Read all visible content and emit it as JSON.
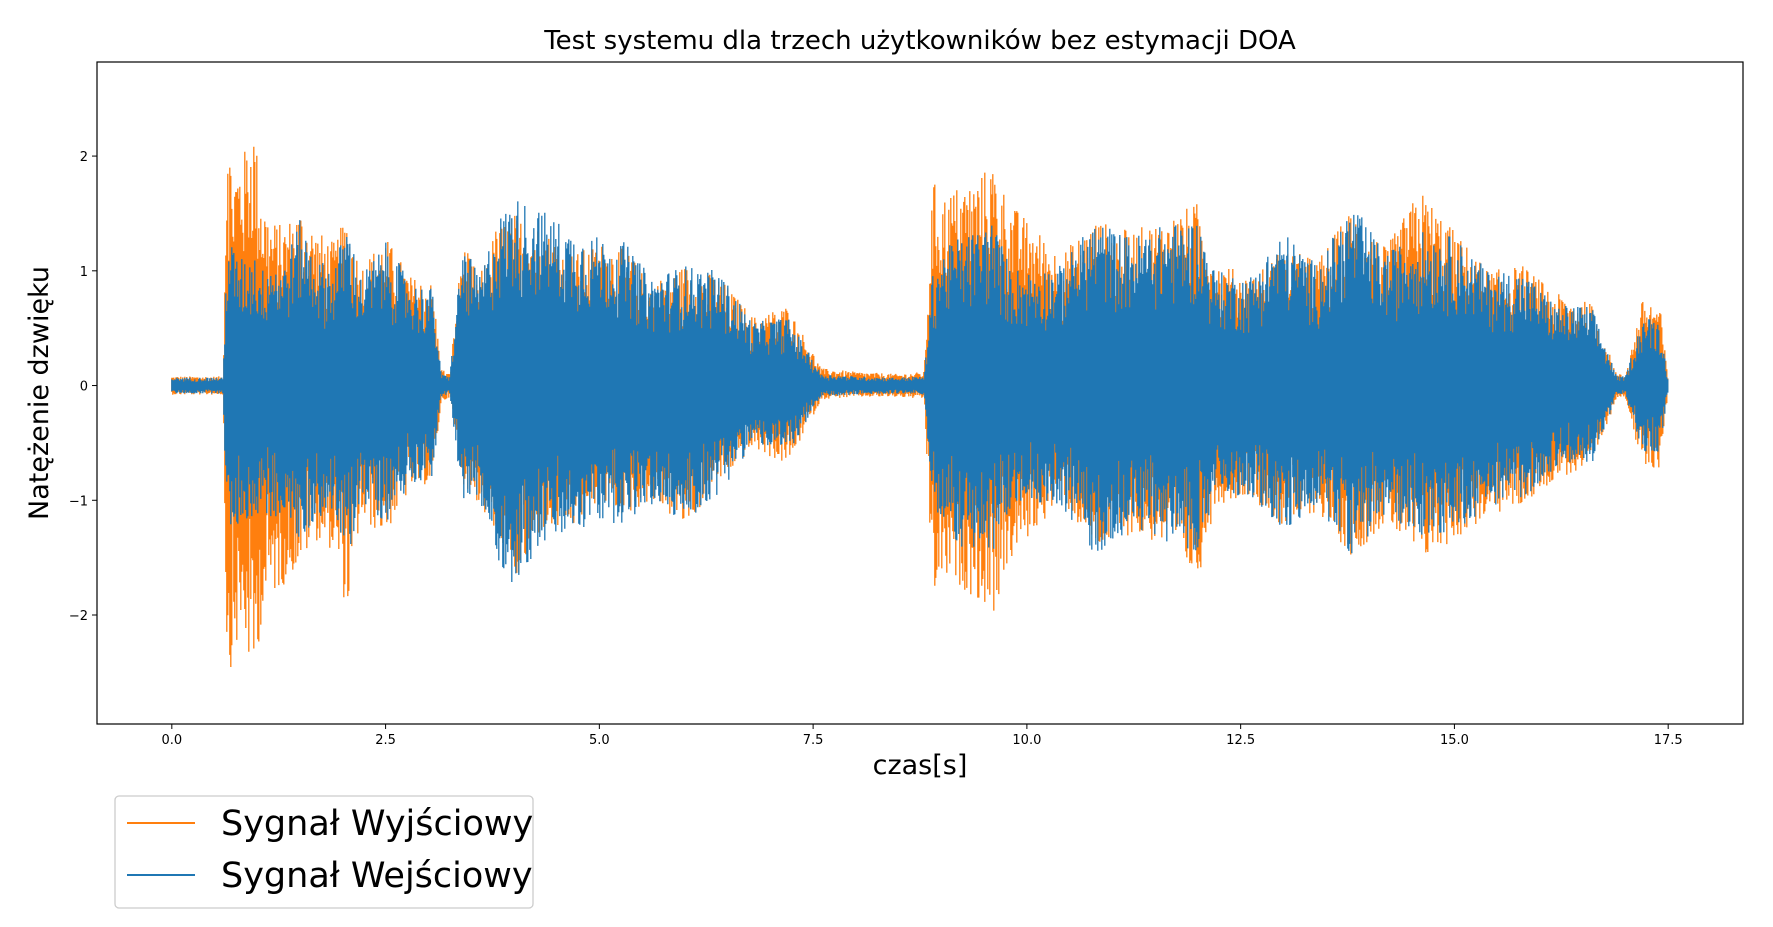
{
  "chart_data": {
    "type": "line",
    "title": "Test systemu dla trzech użytkowników bez estymacji DOA",
    "xlabel": "czas[s]",
    "ylabel": "Natężenie dzwięku",
    "xlim": [
      -0.875,
      18.375
    ],
    "ylim": [
      -2.95,
      2.82
    ],
    "x_ticks": [
      0.0,
      2.5,
      5.0,
      7.5,
      10.0,
      12.5,
      15.0,
      17.5
    ],
    "x_tick_labels": [
      "0.0",
      "2.5",
      "5.0",
      "7.5",
      "10.0",
      "12.5",
      "15.0",
      "17.5"
    ],
    "y_ticks": [
      -2,
      -1,
      0,
      1,
      2
    ],
    "y_tick_labels": [
      "−2",
      "−1",
      "0",
      "1",
      "2"
    ],
    "grid": false,
    "legend_position": "below-left",
    "series": [
      {
        "name": "Sygnał Wyjściowy",
        "color": "#ff7f0e",
        "envelope": {
          "x": [
            0.0,
            0.6,
            0.65,
            0.7,
            0.75,
            0.85,
            0.95,
            1.05,
            1.15,
            1.3,
            1.5,
            1.7,
            1.9,
            2.05,
            2.2,
            2.5,
            2.8,
            3.05,
            3.15,
            3.25,
            3.4,
            3.6,
            3.8,
            4.0,
            4.3,
            4.7,
            5.0,
            5.3,
            5.6,
            6.0,
            6.4,
            6.8,
            7.2,
            7.6,
            8.0,
            8.5,
            8.8,
            8.9,
            9.0,
            9.2,
            9.4,
            9.6,
            9.8,
            10.0,
            10.4,
            10.8,
            11.2,
            11.6,
            12.0,
            12.2,
            12.6,
            13.0,
            13.4,
            13.8,
            14.2,
            14.6,
            15.0,
            15.4,
            15.8,
            16.2,
            16.6,
            16.9,
            17.0,
            17.2,
            17.4,
            17.5
          ],
          "upper": [
            0.08,
            0.08,
            2.55,
            1.85,
            1.95,
            2.05,
            2.35,
            1.7,
            1.45,
            1.4,
            1.55,
            1.35,
            1.25,
            1.5,
            1.05,
            1.3,
            0.95,
            0.9,
            0.15,
            0.1,
            1.25,
            0.95,
            1.4,
            1.5,
            1.4,
            1.15,
            1.25,
            1.2,
            0.9,
            1.05,
            0.95,
            0.6,
            0.7,
            0.15,
            0.12,
            0.1,
            0.12,
            1.8,
            1.65,
            1.75,
            1.8,
            1.95,
            1.6,
            1.45,
            1.15,
            1.45,
            1.35,
            1.45,
            1.6,
            1.1,
            0.95,
            1.2,
            1.1,
            1.55,
            1.2,
            1.72,
            1.35,
            1.0,
            1.05,
            0.8,
            0.72,
            0.1,
            0.1,
            0.75,
            0.72,
            0.05
          ],
          "lower": [
            -0.08,
            -0.08,
            -2.68,
            -2.4,
            -2.3,
            -2.2,
            -2.65,
            -2.05,
            -1.85,
            -1.75,
            -1.55,
            -1.35,
            -1.45,
            -2.0,
            -1.2,
            -1.3,
            -0.9,
            -0.85,
            -0.15,
            -0.1,
            -0.85,
            -1.05,
            -1.35,
            -1.8,
            -1.3,
            -1.25,
            -1.0,
            -1.15,
            -1.0,
            -1.25,
            -0.85,
            -0.55,
            -0.7,
            -0.12,
            -0.1,
            -0.1,
            -0.12,
            -1.88,
            -1.7,
            -1.75,
            -1.85,
            -2.02,
            -1.55,
            -1.35,
            -1.0,
            -1.45,
            -1.3,
            -1.4,
            -1.7,
            -1.05,
            -0.95,
            -1.25,
            -1.1,
            -1.5,
            -1.2,
            -1.55,
            -1.35,
            -1.15,
            -1.05,
            -0.8,
            -0.75,
            -0.1,
            -0.1,
            -0.75,
            -0.72,
            -0.05
          ]
        }
      },
      {
        "name": "Sygnał Wejściowy",
        "color": "#1f77b4",
        "envelope": {
          "x": [
            0.0,
            0.6,
            0.65,
            0.7,
            0.75,
            0.85,
            0.95,
            1.05,
            1.15,
            1.3,
            1.5,
            1.7,
            1.9,
            2.05,
            2.2,
            2.5,
            2.8,
            3.05,
            3.15,
            3.25,
            3.4,
            3.6,
            3.8,
            4.0,
            4.3,
            4.7,
            5.0,
            5.3,
            5.6,
            6.0,
            6.4,
            6.8,
            7.2,
            7.6,
            8.0,
            8.5,
            8.8,
            8.9,
            9.0,
            9.2,
            9.4,
            9.6,
            9.8,
            10.0,
            10.4,
            10.8,
            11.2,
            11.6,
            12.0,
            12.2,
            12.6,
            13.0,
            13.4,
            13.8,
            14.2,
            14.6,
            15.0,
            15.4,
            15.8,
            16.2,
            16.6,
            16.9,
            17.0,
            17.2,
            17.4,
            17.5
          ],
          "upper": [
            0.07,
            0.07,
            1.35,
            1.25,
            1.15,
            1.1,
            1.2,
            1.0,
            1.15,
            1.05,
            1.45,
            1.1,
            1.05,
            1.45,
            0.95,
            1.25,
            0.9,
            0.85,
            0.1,
            0.08,
            1.25,
            0.95,
            1.45,
            1.65,
            1.55,
            1.35,
            1.3,
            1.25,
            0.95,
            1.05,
            1.0,
            0.55,
            0.6,
            0.1,
            0.08,
            0.07,
            0.08,
            1.0,
            1.15,
            1.3,
            1.35,
            1.45,
            1.05,
            1.0,
            1.05,
            1.45,
            1.3,
            1.4,
            1.45,
            1.0,
            0.95,
            1.35,
            1.05,
            1.6,
            1.15,
            1.35,
            1.3,
            1.0,
            1.0,
            0.7,
            0.7,
            0.08,
            0.08,
            0.6,
            0.58,
            0.04
          ],
          "lower": [
            -0.07,
            -0.07,
            -1.35,
            -1.3,
            -1.25,
            -1.15,
            -1.25,
            -1.05,
            -1.2,
            -1.1,
            -1.4,
            -1.15,
            -1.1,
            -1.6,
            -1.0,
            -1.2,
            -0.85,
            -0.8,
            -0.1,
            -0.08,
            -1.0,
            -1.05,
            -1.5,
            -1.78,
            -1.4,
            -1.3,
            -1.2,
            -1.2,
            -1.05,
            -1.2,
            -0.95,
            -0.5,
            -0.6,
            -0.1,
            -0.08,
            -0.07,
            -0.08,
            -1.05,
            -1.2,
            -1.4,
            -1.45,
            -1.5,
            -1.1,
            -1.0,
            -1.05,
            -1.5,
            -1.25,
            -1.35,
            -1.45,
            -1.0,
            -0.95,
            -1.3,
            -1.05,
            -1.48,
            -1.15,
            -1.3,
            -1.3,
            -1.05,
            -1.0,
            -0.7,
            -0.7,
            -0.08,
            -0.08,
            -0.6,
            -0.58,
            -0.04
          ]
        }
      }
    ]
  }
}
